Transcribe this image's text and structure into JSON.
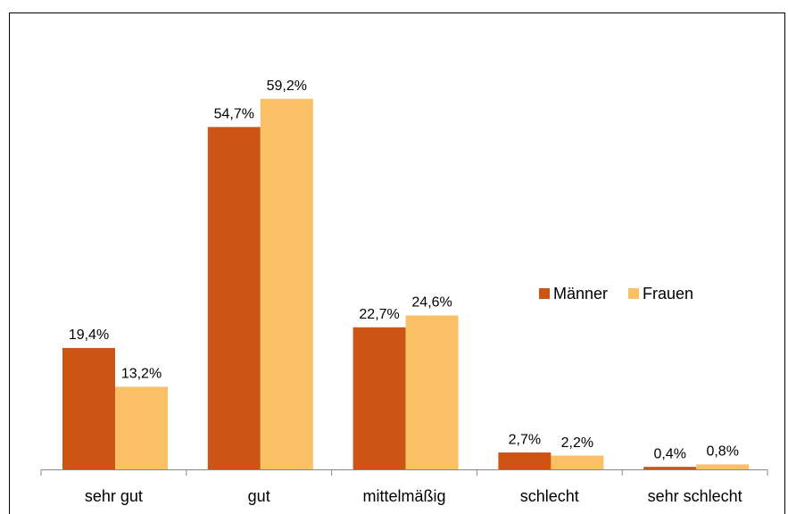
{
  "chart_data": {
    "type": "bar",
    "categories": [
      "sehr gut",
      "gut",
      "mittelmäßig",
      "schlecht",
      "sehr schlecht"
    ],
    "series": [
      {
        "name": "Männer",
        "color": "#cc5516",
        "values": [
          19.4,
          54.7,
          22.7,
          2.7,
          0.4
        ],
        "value_labels": [
          "19,4%",
          "54,7%",
          "22,7%",
          "2,7%",
          "0,4%"
        ]
      },
      {
        "name": "Frauen",
        "color": "#f9c066",
        "values": [
          13.2,
          59.2,
          24.6,
          2.2,
          0.8
        ],
        "value_labels": [
          "13,2%",
          "59,2%",
          "24,6%",
          "2,2%",
          "0,8%"
        ]
      }
    ],
    "ylim": [
      0,
      70
    ],
    "legend": "right"
  }
}
